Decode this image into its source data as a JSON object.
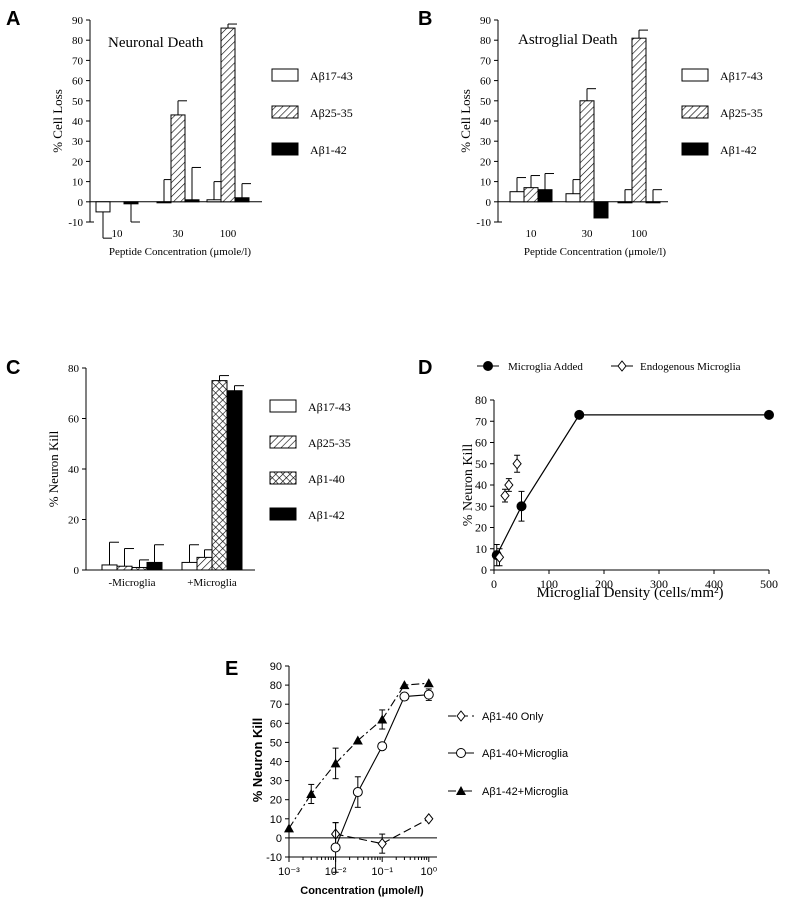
{
  "chart_data": [
    {
      "panel": "A",
      "type": "bar",
      "annotation": "Neuronal Death",
      "ylabel": "% Cell Loss",
      "xlabel": "Peptide Concentration (μmole/l)",
      "categories": [
        "10",
        "30",
        "100"
      ],
      "ylim": [
        -10,
        90
      ],
      "yticks": [
        -10,
        0,
        10,
        20,
        30,
        40,
        50,
        60,
        70,
        80,
        90
      ],
      "series": [
        {
          "name": "Aβ17-43",
          "fill": "white",
          "values": [
            -5,
            0,
            1
          ],
          "errors": [
            13,
            11,
            9
          ]
        },
        {
          "name": "Aβ25-35",
          "fill": "hatch",
          "values": [
            null,
            43,
            86
          ],
          "errors": [
            null,
            7,
            2
          ]
        },
        {
          "name": "Aβ1-42",
          "fill": "black",
          "values": [
            -1,
            1,
            2
          ],
          "errors": [
            9,
            16,
            7
          ]
        }
      ]
    },
    {
      "panel": "B",
      "type": "bar",
      "annotation": "Astroglial Death",
      "ylabel": "% Cell Loss",
      "xlabel": "Peptide Concentration (μmole/l)",
      "categories": [
        "10",
        "30",
        "100"
      ],
      "ylim": [
        -10,
        90
      ],
      "yticks": [
        -10,
        0,
        10,
        20,
        30,
        40,
        50,
        60,
        70,
        80,
        90
      ],
      "series": [
        {
          "name": "Aβ17-43",
          "fill": "white",
          "values": [
            5,
            4,
            0
          ],
          "errors": [
            7,
            7,
            6
          ]
        },
        {
          "name": "Aβ25-35",
          "fill": "hatch",
          "values": [
            7,
            50,
            81
          ],
          "errors": [
            6,
            6,
            4
          ]
        },
        {
          "name": "Aβ1-42",
          "fill": "black",
          "values": [
            6,
            -8,
            0
          ],
          "errors": [
            8,
            null,
            6
          ]
        }
      ]
    },
    {
      "panel": "C",
      "type": "bar",
      "ylabel": "% Neuron Kill",
      "categories": [
        "-Microglia",
        "+Microglia"
      ],
      "ylim": [
        0,
        80
      ],
      "yticks": [
        0,
        20,
        40,
        60,
        80
      ],
      "series": [
        {
          "name": "Aβ17-43",
          "fill": "white",
          "values": [
            2,
            3
          ],
          "errors": [
            9,
            7
          ]
        },
        {
          "name": "Aβ25-35",
          "fill": "hatch",
          "values": [
            1.5,
            5
          ],
          "errors": [
            7,
            3
          ]
        },
        {
          "name": "Aβ1-40",
          "fill": "crosshatch",
          "values": [
            1,
            75
          ],
          "errors": [
            3,
            2
          ]
        },
        {
          "name": "Aβ1-42",
          "fill": "black",
          "values": [
            3,
            71
          ],
          "errors": [
            7,
            2
          ]
        }
      ]
    },
    {
      "panel": "D",
      "type": "scatter",
      "ylabel": "% Neuron Kill",
      "xlabel": "Microglial Density (cells/mm²)",
      "xlim": [
        0,
        500
      ],
      "ylim": [
        0,
        80
      ],
      "xticks": [
        0,
        100,
        200,
        300,
        400,
        500
      ],
      "yticks": [
        0,
        10,
        20,
        30,
        40,
        50,
        60,
        70,
        80
      ],
      "series": [
        {
          "name": "Microglia Added",
          "marker": "filled-circle",
          "line": true,
          "x": [
            5,
            50,
            155,
            500
          ],
          "y": [
            7,
            30,
            73,
            73
          ],
          "errors": [
            5,
            7,
            0,
            0
          ]
        },
        {
          "name": "Endogenous Microglia",
          "marker": "open-diamond",
          "line": false,
          "x": [
            10,
            20,
            27,
            42
          ],
          "y": [
            6,
            35,
            40,
            50
          ],
          "errors": [
            4,
            3,
            3,
            4
          ]
        }
      ]
    },
    {
      "panel": "E",
      "type": "line",
      "ylabel": "% Neuron Kill",
      "xlabel": "Concentration (μmole/l)",
      "xscale": "log",
      "xlim": [
        0.001,
        1.5
      ],
      "ylim": [
        -10,
        90
      ],
      "xtick_labels": [
        "10⁻³",
        "10⁻²",
        "10⁻¹",
        "10⁰"
      ],
      "yticks": [
        -10,
        0,
        10,
        20,
        30,
        40,
        50,
        60,
        70,
        80,
        90
      ],
      "series": [
        {
          "name": "Aβ1-40 Only",
          "marker": "open-diamond",
          "dash": "long",
          "x": [
            0.01,
            0.1,
            1
          ],
          "y": [
            2,
            -3,
            10
          ],
          "errors": [
            6,
            5,
            0
          ]
        },
        {
          "name": "Aβ1-40+Microglia",
          "marker": "open-circle",
          "dash": "solid",
          "x": [
            0.01,
            0.03,
            0.1,
            0.3,
            1
          ],
          "y": [
            -5,
            24,
            48,
            74,
            75
          ],
          "errors": [
            13,
            8,
            0,
            0,
            3
          ]
        },
        {
          "name": "Aβ1-42+Microglia",
          "marker": "filled-triangle",
          "dash": "dashdot",
          "x": [
            0.001,
            0.003,
            0.01,
            0.03,
            0.1,
            0.3,
            1
          ],
          "y": [
            5,
            23,
            39,
            51,
            62,
            80,
            81
          ],
          "errors": [
            0,
            5,
            8,
            0,
            5,
            0,
            0
          ]
        }
      ]
    }
  ],
  "panel_labels": [
    "A",
    "B",
    "C",
    "D",
    "E"
  ]
}
